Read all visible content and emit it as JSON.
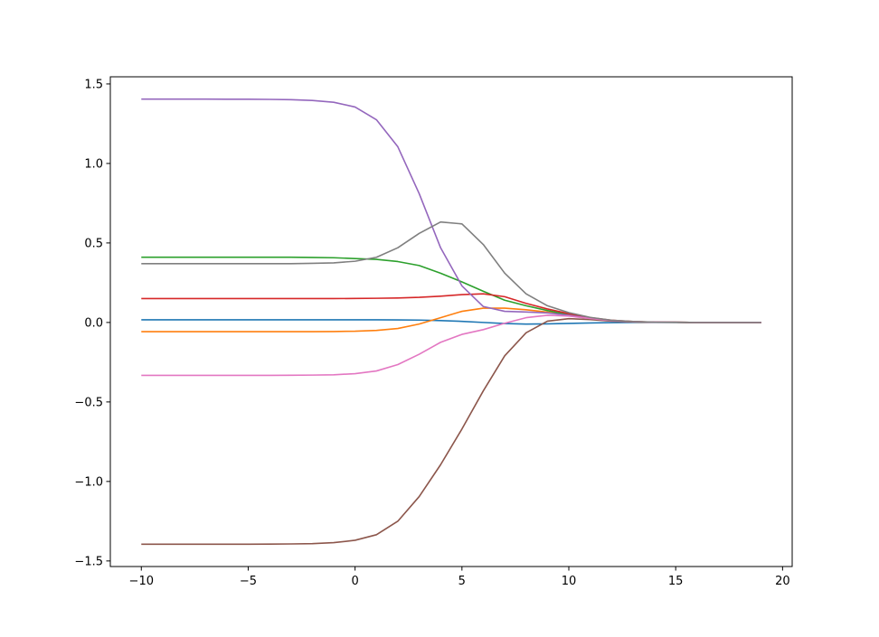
{
  "chart_data": {
    "type": "line",
    "title": "",
    "xlabel": "",
    "ylabel": "",
    "xlim": [
      -11.45,
      20.45
    ],
    "ylim": [
      -1.535,
      1.545
    ],
    "grid": false,
    "legend": "none",
    "x": [
      -10,
      -9,
      -8,
      -7,
      -6,
      -5,
      -4,
      -3,
      -2,
      -1,
      0,
      1,
      2,
      3,
      4,
      5,
      6,
      7,
      8,
      9,
      10,
      11,
      12,
      13,
      14,
      15,
      16,
      17,
      18,
      19
    ],
    "xticks": [
      -10,
      -5,
      0,
      5,
      10,
      15,
      20
    ],
    "xtick_labels": [
      "−10",
      "−5",
      "0",
      "5",
      "10",
      "15",
      "20"
    ],
    "yticks": [
      -1.5,
      -1.0,
      -0.5,
      0.0,
      0.5,
      1.0,
      1.5
    ],
    "ytick_labels": [
      "−1.5",
      "−1.0",
      "−0.5",
      "0.0",
      "0.5",
      "1.0",
      "1.5"
    ],
    "series": [
      {
        "color": "#1f77b4",
        "values": [
          0.017,
          0.017,
          0.017,
          0.017,
          0.017,
          0.017,
          0.017,
          0.017,
          0.017,
          0.017,
          0.017,
          0.017,
          0.016,
          0.015,
          0.012,
          0.007,
          0.0,
          -0.007,
          -0.01,
          -0.009,
          -0.006,
          -0.003,
          -0.001,
          0.0,
          0.0,
          0.0,
          0.0,
          0.0,
          0.0,
          0.0
        ]
      },
      {
        "color": "#ff7f0e",
        "values": [
          -0.058,
          -0.058,
          -0.058,
          -0.058,
          -0.058,
          -0.058,
          -0.058,
          -0.058,
          -0.058,
          -0.057,
          -0.055,
          -0.05,
          -0.038,
          -0.01,
          0.03,
          0.07,
          0.09,
          0.09,
          0.08,
          0.065,
          0.045,
          0.025,
          0.01,
          0.004,
          0.002,
          0.001,
          0.0,
          0.0,
          0.0,
          0.0
        ]
      },
      {
        "color": "#2ca02c",
        "values": [
          0.41,
          0.41,
          0.41,
          0.41,
          0.41,
          0.41,
          0.41,
          0.41,
          0.409,
          0.407,
          0.402,
          0.397,
          0.383,
          0.358,
          0.31,
          0.255,
          0.196,
          0.14,
          0.105,
          0.075,
          0.048,
          0.025,
          0.012,
          0.005,
          0.002,
          0.001,
          0.0,
          0.0,
          0.0,
          0.0
        ]
      },
      {
        "color": "#d62728",
        "values": [
          0.15,
          0.15,
          0.15,
          0.15,
          0.15,
          0.15,
          0.15,
          0.15,
          0.15,
          0.15,
          0.151,
          0.152,
          0.154,
          0.158,
          0.165,
          0.175,
          0.18,
          0.162,
          0.12,
          0.085,
          0.055,
          0.03,
          0.014,
          0.006,
          0.002,
          0.001,
          0.0,
          0.0,
          0.0,
          0.0
        ]
      },
      {
        "color": "#9467bd",
        "values": [
          1.405,
          1.405,
          1.405,
          1.405,
          1.404,
          1.404,
          1.403,
          1.401,
          1.396,
          1.385,
          1.355,
          1.275,
          1.105,
          0.81,
          0.47,
          0.23,
          0.1,
          0.07,
          0.066,
          0.06,
          0.045,
          0.025,
          0.012,
          0.005,
          0.002,
          0.001,
          0.0,
          0.0,
          0.0,
          0.0
        ]
      },
      {
        "color": "#8c564b",
        "values": [
          -1.395,
          -1.395,
          -1.395,
          -1.395,
          -1.395,
          -1.395,
          -1.394,
          -1.393,
          -1.391,
          -1.385,
          -1.37,
          -1.335,
          -1.25,
          -1.095,
          -0.895,
          -0.67,
          -0.43,
          -0.21,
          -0.065,
          0.008,
          0.024,
          0.018,
          0.008,
          0.003,
          0.001,
          0.0,
          0.0,
          0.0,
          0.0,
          0.0
        ]
      },
      {
        "color": "#e377c2",
        "values": [
          -0.333,
          -0.333,
          -0.333,
          -0.333,
          -0.333,
          -0.333,
          -0.333,
          -0.332,
          -0.331,
          -0.329,
          -0.322,
          -0.305,
          -0.265,
          -0.2,
          -0.125,
          -0.075,
          -0.045,
          -0.005,
          0.03,
          0.045,
          0.04,
          0.025,
          0.012,
          0.005,
          0.002,
          0.001,
          0.0,
          0.0,
          0.0,
          0.0
        ]
      },
      {
        "color": "#7f7f7f",
        "values": [
          0.37,
          0.37,
          0.37,
          0.37,
          0.37,
          0.37,
          0.37,
          0.37,
          0.372,
          0.375,
          0.385,
          0.41,
          0.47,
          0.56,
          0.632,
          0.62,
          0.49,
          0.31,
          0.18,
          0.105,
          0.062,
          0.032,
          0.014,
          0.006,
          0.002,
          0.001,
          0.0,
          0.0,
          0.0,
          0.0
        ]
      }
    ]
  }
}
